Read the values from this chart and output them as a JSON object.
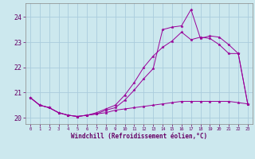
{
  "xlabel": "Windchill (Refroidissement éolien,°C)",
  "bg_color": "#cce8ee",
  "grid_color": "#aaccdd",
  "line_color": "#990099",
  "xlim": [
    -0.5,
    23.5
  ],
  "ylim": [
    19.75,
    24.55
  ],
  "yticks": [
    20,
    21,
    22,
    23,
    24
  ],
  "xticks": [
    0,
    1,
    2,
    3,
    4,
    5,
    6,
    7,
    8,
    9,
    10,
    11,
    12,
    13,
    14,
    15,
    16,
    17,
    18,
    19,
    20,
    21,
    22,
    23
  ],
  "series": [
    [
      20.8,
      20.5,
      20.4,
      20.2,
      20.1,
      20.05,
      20.1,
      20.15,
      20.3,
      20.4,
      20.7,
      21.1,
      21.55,
      21.95,
      23.5,
      23.6,
      23.65,
      24.3,
      23.15,
      23.25,
      23.2,
      22.9,
      22.55,
      20.55
    ],
    [
      20.8,
      20.5,
      20.4,
      20.2,
      20.1,
      20.05,
      20.1,
      20.2,
      20.35,
      20.5,
      20.9,
      21.4,
      22.0,
      22.45,
      22.8,
      23.05,
      23.4,
      23.1,
      23.2,
      23.15,
      22.9,
      22.55,
      22.55,
      20.55
    ],
    [
      20.8,
      20.5,
      20.4,
      20.2,
      20.1,
      20.05,
      20.1,
      20.15,
      20.2,
      20.3,
      20.35,
      20.4,
      20.45,
      20.5,
      20.55,
      20.6,
      20.65,
      20.65,
      20.65,
      20.65,
      20.65,
      20.65,
      20.6,
      20.55
    ]
  ]
}
